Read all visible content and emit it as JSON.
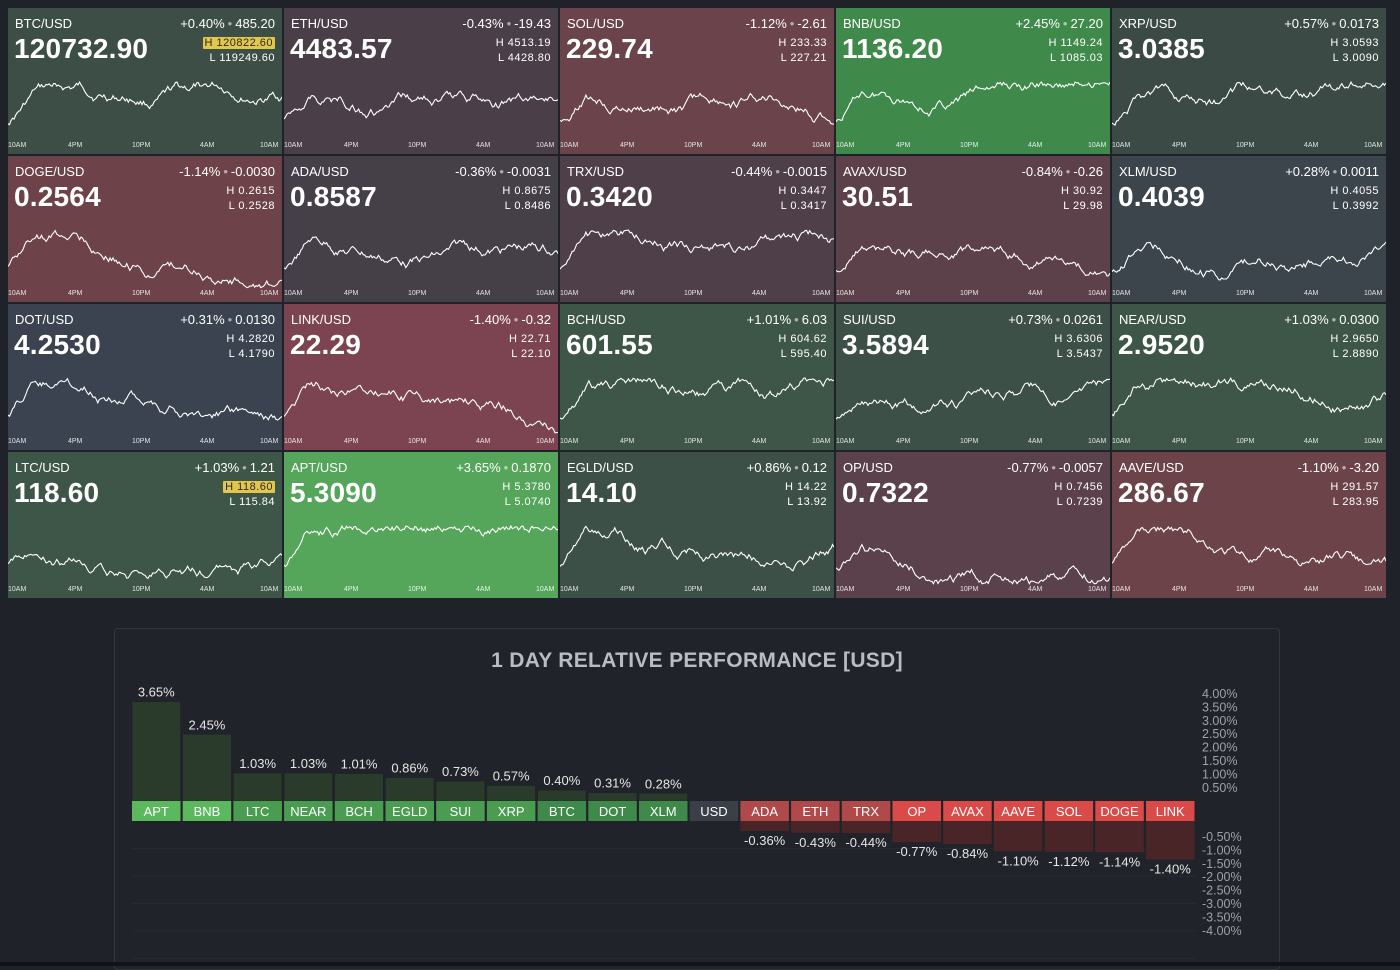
{
  "tiles": [
    {
      "symbol": "BTC/USD",
      "change_pct": "+0.40%",
      "change_abs": "485.20",
      "price": "120732.90",
      "high": "120822.60",
      "low": "119249.60",
      "high_badge": true,
      "bg": "#3d4e47"
    },
    {
      "symbol": "ETH/USD",
      "change_pct": "-0.43%",
      "change_abs": "-19.43",
      "price": "4483.57",
      "high": "4513.19",
      "low": "4428.80",
      "bg": "#4a3f48"
    },
    {
      "symbol": "SOL/USD",
      "change_pct": "-1.12%",
      "change_abs": "-2.61",
      "price": "229.74",
      "high": "233.33",
      "low": "227.21",
      "bg": "#6a434b"
    },
    {
      "symbol": "BNB/USD",
      "change_pct": "+2.45%",
      "change_abs": "27.20",
      "price": "1136.20",
      "high": "1149.24",
      "low": "1085.03",
      "bg": "#3f8a4b"
    },
    {
      "symbol": "XRP/USD",
      "change_pct": "+0.57%",
      "change_abs": "0.0173",
      "price": "3.0385",
      "high": "3.0593",
      "low": "3.0090",
      "bg": "#3c4a46"
    },
    {
      "symbol": "DOGE/USD",
      "change_pct": "-1.14%",
      "change_abs": "-0.0030",
      "price": "0.2564",
      "high": "0.2615",
      "low": "0.2528",
      "bg": "#6d4349"
    },
    {
      "symbol": "ADA/USD",
      "change_pct": "-0.36%",
      "change_abs": "-0.0031",
      "price": "0.8587",
      "high": "0.8675",
      "low": "0.8486",
      "bg": "#453f48"
    },
    {
      "symbol": "TRX/USD",
      "change_pct": "-0.44%",
      "change_abs": "-0.0015",
      "price": "0.3420",
      "high": "0.3447",
      "low": "0.3417",
      "bg": "#4e3f48"
    },
    {
      "symbol": "AVAX/USD",
      "change_pct": "-0.84%",
      "change_abs": "-0.26",
      "price": "30.51",
      "high": "30.92",
      "low": "29.98",
      "bg": "#5d414a"
    },
    {
      "symbol": "XLM/USD",
      "change_pct": "+0.28%",
      "change_abs": "0.0011",
      "price": "0.4039",
      "high": "0.4055",
      "low": "0.3992",
      "bg": "#3c454b"
    },
    {
      "symbol": "DOT/USD",
      "change_pct": "+0.31%",
      "change_abs": "0.0130",
      "price": "4.2530",
      "high": "4.2820",
      "low": "4.1790",
      "bg": "#3b4250"
    },
    {
      "symbol": "LINK/USD",
      "change_pct": "-1.40%",
      "change_abs": "-0.32",
      "price": "22.29",
      "high": "22.71",
      "low": "22.10",
      "bg": "#7b4450"
    },
    {
      "symbol": "BCH/USD",
      "change_pct": "+1.01%",
      "change_abs": "6.03",
      "price": "601.55",
      "high": "604.62",
      "low": "595.40",
      "bg": "#3d5647"
    },
    {
      "symbol": "SUI/USD",
      "change_pct": "+0.73%",
      "change_abs": "0.0261",
      "price": "3.5894",
      "high": "3.6306",
      "low": "3.5437",
      "bg": "#3d5047"
    },
    {
      "symbol": "NEAR/USD",
      "change_pct": "+1.03%",
      "change_abs": "0.0300",
      "price": "2.9520",
      "high": "2.9650",
      "low": "2.8890",
      "bg": "#3d5647"
    },
    {
      "symbol": "LTC/USD",
      "change_pct": "+1.03%",
      "change_abs": "1.21",
      "price": "118.60",
      "high": "118.60",
      "low": "115.84",
      "high_badge": true,
      "bg": "#3d5647"
    },
    {
      "symbol": "APT/USD",
      "change_pct": "+3.65%",
      "change_abs": "0.1870",
      "price": "5.3090",
      "high": "5.3780",
      "low": "5.0740",
      "bg": "#55a65a"
    },
    {
      "symbol": "EGLD/USD",
      "change_pct": "+0.86%",
      "change_abs": "0.12",
      "price": "14.10",
      "high": "14.22",
      "low": "13.92",
      "bg": "#3d5047"
    },
    {
      "symbol": "OP/USD",
      "change_pct": "-0.77%",
      "change_abs": "-0.0057",
      "price": "0.7322",
      "high": "0.7456",
      "low": "0.7239",
      "bg": "#5a414b"
    },
    {
      "symbol": "AAVE/USD",
      "change_pct": "-1.10%",
      "change_abs": "-3.20",
      "price": "286.67",
      "high": "291.57",
      "low": "283.95",
      "bg": "#6b4349"
    }
  ],
  "time_ticks": [
    "10AM",
    "4PM",
    "10PM",
    "4AM",
    "10AM"
  ],
  "hl_labels": {
    "high": "H",
    "low": "L"
  },
  "performance": {
    "title": "1 DAY RELATIVE PERFORMANCE  [USD]",
    "colors": {
      "pos_bar": "#2a3b2c",
      "neg_bar": "#4a2528",
      "pos_label_strong": "#5cb85c",
      "pos_label": "#4a9d50",
      "pos_label_weak": "#3f8a4b",
      "neutral_label": "#3a3f48",
      "neg_label_weak": "#b04a4a",
      "neg_label_strong": "#d94a48"
    }
  },
  "chart_data": {
    "type": "bar",
    "title": "1 DAY RELATIVE PERFORMANCE  [USD]",
    "categories": [
      "APT",
      "BNB",
      "LTC",
      "NEAR",
      "BCH",
      "EGLD",
      "SUI",
      "XRP",
      "BTC",
      "DOT",
      "XLM",
      "USD",
      "ADA",
      "ETH",
      "TRX",
      "OP",
      "AVAX",
      "AAVE",
      "SOL",
      "DOGE",
      "LINK"
    ],
    "values": [
      3.65,
      2.45,
      1.03,
      1.03,
      1.01,
      0.86,
      0.73,
      0.57,
      0.4,
      0.31,
      0.28,
      0,
      -0.36,
      -0.43,
      -0.44,
      -0.77,
      -0.84,
      -1.1,
      -1.12,
      -1.14,
      -1.4
    ],
    "value_labels": [
      "3.65%",
      "2.45%",
      "1.03%",
      "1.03%",
      "1.01%",
      "0.86%",
      "0.73%",
      "0.57%",
      "0.40%",
      "0.31%",
      "0.28%",
      "",
      "-0.36%",
      "-0.43%",
      "-0.44%",
      "-0.77%",
      "-0.84%",
      "-1.10%",
      "-1.12%",
      "-1.14%",
      "-1.40%"
    ],
    "ylim_pos": [
      0,
      4.0
    ],
    "ylim_neg": [
      -4.0,
      0
    ],
    "pos_ticks": [
      "4.00%",
      "3.50%",
      "3.00%",
      "2.50%",
      "2.00%",
      "1.50%",
      "1.00%",
      "0.50%"
    ],
    "neg_ticks": [
      "-0.50%",
      "-1.00%",
      "-1.50%",
      "-2.00%",
      "-2.50%",
      "-3.00%",
      "-3.50%",
      "-4.00%"
    ],
    "grid": true
  }
}
